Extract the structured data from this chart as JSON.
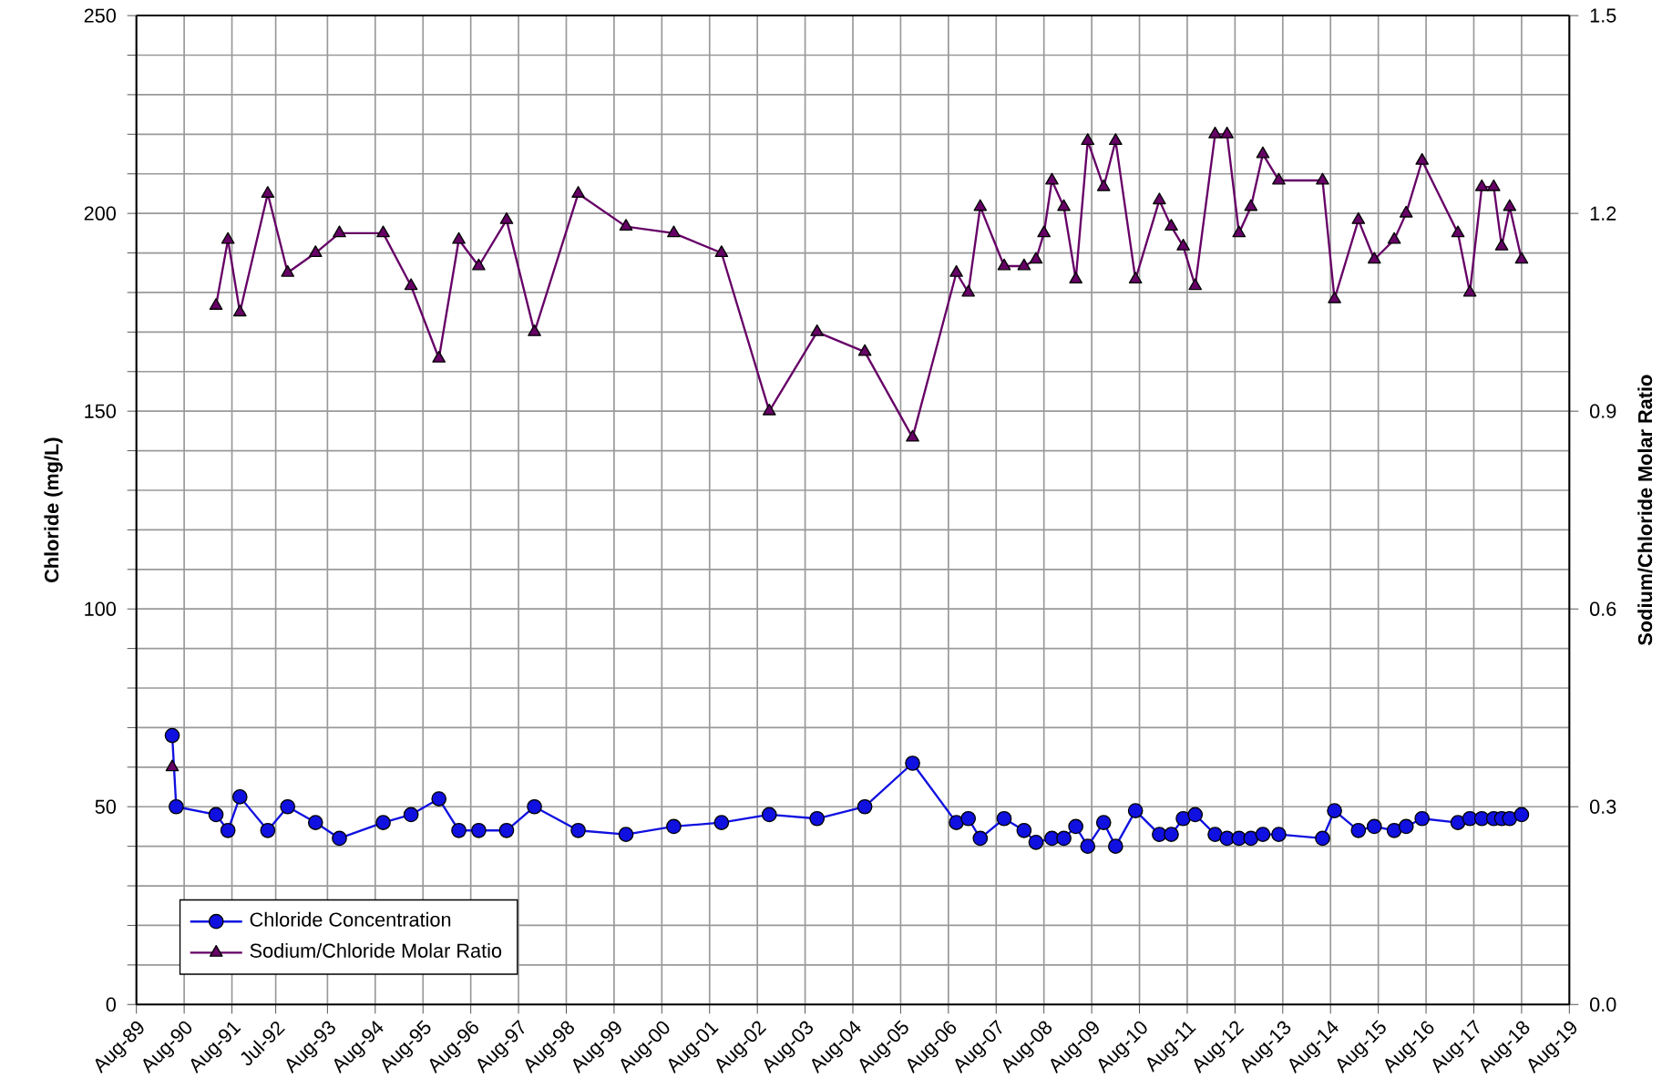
{
  "chart_data": {
    "type": "line",
    "ylabel": "Chloride (mg/L)",
    "y2label": "Sodium/Chloride Molar Ratio",
    "xlim": [
      "1989-08",
      "2019-08"
    ],
    "xticks": [
      {
        "value": "1989-08",
        "label": "Aug-89"
      },
      {
        "value": "1990-08",
        "label": "Aug-90"
      },
      {
        "value": "1991-08",
        "label": "Aug-91"
      },
      {
        "value": "1992-07",
        "label": "Jul-92"
      },
      {
        "value": "1993-08",
        "label": "Aug-93"
      },
      {
        "value": "1994-08",
        "label": "Aug-94"
      },
      {
        "value": "1995-08",
        "label": "Aug-95"
      },
      {
        "value": "1996-08",
        "label": "Aug-96"
      },
      {
        "value": "1997-08",
        "label": "Aug-97"
      },
      {
        "value": "1998-08",
        "label": "Aug-98"
      },
      {
        "value": "1999-08",
        "label": "Aug-99"
      },
      {
        "value": "2000-08",
        "label": "Aug-00"
      },
      {
        "value": "2001-08",
        "label": "Aug-01"
      },
      {
        "value": "2002-08",
        "label": "Aug-02"
      },
      {
        "value": "2003-08",
        "label": "Aug-03"
      },
      {
        "value": "2004-08",
        "label": "Aug-04"
      },
      {
        "value": "2005-08",
        "label": "Aug-05"
      },
      {
        "value": "2006-08",
        "label": "Aug-06"
      },
      {
        "value": "2007-08",
        "label": "Aug-07"
      },
      {
        "value": "2008-08",
        "label": "Aug-08"
      },
      {
        "value": "2009-08",
        "label": "Aug-09"
      },
      {
        "value": "2010-08",
        "label": "Aug-10"
      },
      {
        "value": "2011-08",
        "label": "Aug-11"
      },
      {
        "value": "2012-08",
        "label": "Aug-12"
      },
      {
        "value": "2013-08",
        "label": "Aug-13"
      },
      {
        "value": "2014-08",
        "label": "Aug-14"
      },
      {
        "value": "2015-08",
        "label": "Aug-15"
      },
      {
        "value": "2016-08",
        "label": "Aug-16"
      },
      {
        "value": "2017-08",
        "label": "Aug-17"
      },
      {
        "value": "2018-08",
        "label": "Aug-18"
      },
      {
        "value": "2019-08",
        "label": "Aug-19"
      }
    ],
    "ylim": [
      0,
      250
    ],
    "yticks": [
      0,
      {
        "value": 10,
        "label": null
      },
      {
        "value": 20,
        "label": null
      },
      {
        "value": 30,
        "label": null
      },
      {
        "value": 40,
        "label": null
      },
      50,
      {
        "value": 60,
        "label": null
      },
      {
        "value": 70,
        "label": null
      },
      {
        "value": 80,
        "label": null
      },
      {
        "value": 90,
        "label": null
      },
      100,
      {
        "value": 110,
        "label": null
      },
      {
        "value": 120,
        "label": null
      },
      {
        "value": 130,
        "label": null
      },
      {
        "value": 140,
        "label": null
      },
      150,
      {
        "value": 160,
        "label": null
      },
      {
        "value": 170,
        "label": null
      },
      {
        "value": 180,
        "label": null
      },
      {
        "value": 190,
        "label": null
      },
      200,
      {
        "value": 210,
        "label": null
      },
      {
        "value": 220,
        "label": null
      },
      {
        "value": 230,
        "label": null
      },
      {
        "value": 240,
        "label": null
      },
      250
    ],
    "y2lim": [
      0,
      1.5
    ],
    "y2ticks": [
      {
        "value": 0,
        "label": "0.0"
      },
      0.3,
      0.6,
      0.9,
      1.2,
      1.5
    ],
    "grid": true,
    "legend": "bottom left",
    "line_style": "solid",
    "series": [
      {
        "name": "Chloride Concentration",
        "color": "#1010e0",
        "marker": "circle",
        "x": [
          "1990-05",
          "1990-06",
          "1991-04",
          "1991-07",
          "1991-10",
          "1992-05",
          "1992-10",
          "1993-05",
          "1993-11",
          "1994-10",
          "1995-05",
          "1995-12",
          "1996-05",
          "1996-10",
          "1997-05",
          "1997-12",
          "1998-11",
          "1999-11",
          "2000-11",
          "2001-11",
          "2002-11",
          "2003-11",
          "2004-11",
          "2005-11",
          "2006-10",
          "2007-01",
          "2007-04",
          "2007-10",
          "2008-03",
          "2008-06",
          "2008-10",
          "2009-01",
          "2009-04",
          "2009-07",
          "2009-11",
          "2010-02",
          "2010-07",
          "2011-01",
          "2011-04",
          "2011-07",
          "2011-10",
          "2012-03",
          "2012-06",
          "2012-09",
          "2012-12",
          "2013-03",
          "2013-07",
          "2014-06",
          "2014-09",
          "2015-03",
          "2015-07",
          "2015-12",
          "2016-03",
          "2016-07",
          "2017-04",
          "2017-07",
          "2017-10",
          "2018-01",
          "2018-03",
          "2018-05",
          "2018-08"
        ],
        "values": [
          68,
          50,
          48,
          44,
          52.5,
          44,
          50,
          46,
          42,
          46,
          48,
          52,
          44,
          44,
          44,
          50,
          44,
          43,
          45,
          46,
          48,
          47,
          50,
          61,
          46,
          47,
          42,
          47,
          44,
          41,
          42,
          42,
          45,
          40,
          46,
          40,
          49,
          43,
          43,
          47,
          48,
          43,
          42,
          42,
          42,
          43,
          43,
          42,
          49,
          44,
          45,
          44,
          45,
          47,
          46,
          47,
          47,
          47,
          47,
          47,
          48
        ]
      },
      {
        "name": "Sodium/Chloride Molar Ratio",
        "color": "#660066",
        "marker": "triangle",
        "axis": "y2",
        "x": [
          "1990-05",
          "1990-06",
          "1991-04",
          "1991-07",
          "1991-10",
          "1992-05",
          "1992-10",
          "1993-05",
          "1993-11",
          "1994-10",
          "1995-05",
          "1995-12",
          "1996-05",
          "1996-10",
          "1997-05",
          "1997-12",
          "1998-11",
          "1999-11",
          "2000-11",
          "2001-11",
          "2002-11",
          "2003-11",
          "2004-11",
          "2005-11",
          "2006-10",
          "2007-01",
          "2007-04",
          "2007-10",
          "2008-03",
          "2008-06",
          "2008-08",
          "2008-10",
          "2009-01",
          "2009-04",
          "2009-07",
          "2009-11",
          "2010-02",
          "2010-07",
          "2011-01",
          "2011-04",
          "2011-07",
          "2011-10",
          "2012-03",
          "2012-06",
          "2012-09",
          "2012-12",
          "2013-03",
          "2013-07",
          "2014-06",
          "2014-09",
          "2015-03",
          "2015-07",
          "2015-12",
          "2016-03",
          "2016-07",
          "2017-04",
          "2017-07",
          "2017-10",
          "2018-01",
          "2018-03",
          "2018-05",
          "2018-08"
        ],
        "values": [
          0.36,
          null,
          1.06,
          1.16,
          1.05,
          1.23,
          1.11,
          1.14,
          1.17,
          1.17,
          1.09,
          0.98,
          1.16,
          1.12,
          1.19,
          1.02,
          1.23,
          1.18,
          1.17,
          1.14,
          0.9,
          1.02,
          0.99,
          0.86,
          1.11,
          1.08,
          1.21,
          1.12,
          1.12,
          1.13,
          1.17,
          1.25,
          1.21,
          1.1,
          1.31,
          1.24,
          1.31,
          1.1,
          1.22,
          1.18,
          1.15,
          1.09,
          1.32,
          1.32,
          1.17,
          1.21,
          1.29,
          1.25,
          1.25,
          1.07,
          1.19,
          1.13,
          1.16,
          1.2,
          1.28,
          1.17,
          1.08,
          1.24,
          1.24,
          1.15,
          1.21,
          1.13
        ]
      }
    ]
  }
}
